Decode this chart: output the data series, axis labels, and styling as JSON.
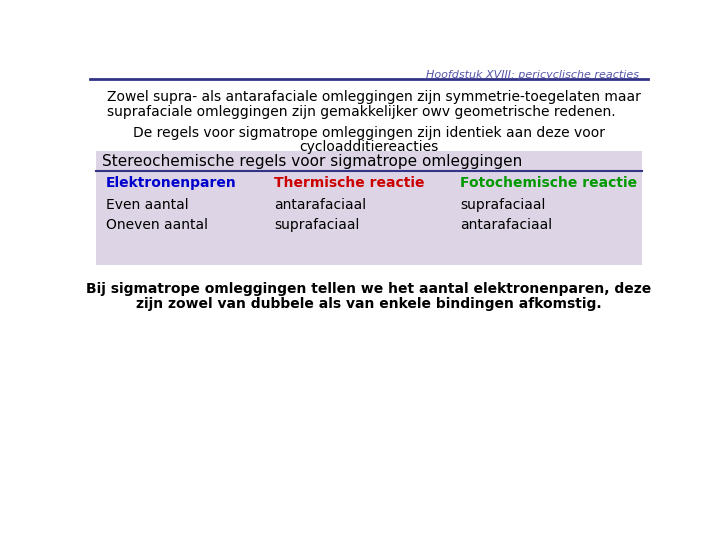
{
  "title": "Hoofdstuk XVIII: pericyclische reacties",
  "title_color": "#5555aa",
  "title_fontsize": 8,
  "bg_color": "#ffffff",
  "line1": "Zowel supra- als antarafaciale omleggingen zijn symmetrie-toegelaten maar",
  "line2": "suprafaciale omleggingen zijn gemakkelijker owv geometrische redenen.",
  "center1": "De regels voor sigmatrope omleggingen zijn identiek aan deze voor",
  "center2": "cycloadditiereacties",
  "table_bg": "#ddd5e5",
  "table_title": "Stereochemische regels voor sigmatrope omleggingen",
  "table_title_fontsize": 11,
  "col1_header": "Elektronenparen",
  "col2_header": "Thermische reactie",
  "col3_header": "Fotochemische reactie",
  "col1_color": "#0000cc",
  "col2_color": "#cc0000",
  "col3_color": "#009900",
  "row1_col1": "Even aantal",
  "row1_col2": "antarafaciaal",
  "row1_col3": "suprafaciaal",
  "row2_col1": "Oneven aantal",
  "row2_col2": "suprafaciaal",
  "row2_col3": "antarafaciaal",
  "footer1": "Bij sigmatrope omleggingen tellen we het aantal elektronenparen, deze",
  "footer2": "zijn zowel van dubbele als van enkele bindingen afkomstig.",
  "separator_color": "#333388",
  "text_color": "#000000",
  "body_fontsize": 10,
  "table_body_fontsize": 10,
  "header_fontsize": 10
}
